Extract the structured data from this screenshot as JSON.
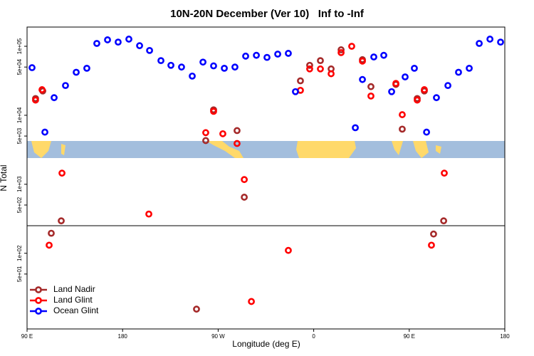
{
  "chart_data": {
    "type": "scatter",
    "title": "10N-20N December (Ver 10)   Inf to -Inf",
    "xlabel": "Longitude (deg E)",
    "ylabel": "N Total",
    "xlim": [
      90,
      540
    ],
    "xticks": [
      {
        "value": 90,
        "label": "90 E"
      },
      180,
      {
        "value": 270,
        "label": "90 W"
      },
      {
        "value": 360,
        "label": "0"
      },
      {
        "value": 450,
        "label": "90 E"
      },
      {
        "value": 540,
        "label": "180"
      }
    ],
    "ylim": [
      8,
      190000
    ],
    "ylog": true,
    "yticks": [
      {
        "value": 100000,
        "label": "1e+05"
      },
      {
        "value": 50000,
        "label": "5e+04"
      },
      {
        "value": 10000,
        "label": "1e+04"
      },
      {
        "value": 5000,
        "label": "5e+03"
      },
      {
        "value": 1000,
        "label": "1e+03"
      },
      {
        "value": 500,
        "label": "5e+02"
      },
      {
        "value": 100,
        "label": "1e+02"
      },
      {
        "value": 50,
        "label": "5e+01"
      }
    ],
    "legend": "bottom-left",
    "series": [
      {
        "name": "Land Nadir",
        "color": "#a52a2a",
        "x": [
          98.0,
          104.8,
          112.8,
          122.2,
          258.3,
          265.7,
          287.8,
          294.6,
          249.6,
          347.5,
          356.2,
          366.3,
          376.4,
          385.8,
          405.9,
          413.9,
          437.4,
          443.4,
          457.5,
          464.2,
          472.9,
          482.4
        ],
        "values": [
          17500,
          22500,
          195,
          295,
          4300,
          12000,
          6000,
          650,
          15.5,
          31600,
          53000,
          62000,
          47000,
          89000,
          64000,
          26000,
          28000,
          6300,
          17500,
          22500,
          190,
          295
        ]
      },
      {
        "name": "Land Glint",
        "color": "#ff0000",
        "x": [
          98.0,
          104.1,
          110.8,
          122.9,
          204.7,
          258.3,
          265.7,
          274.4,
          287.8,
          294.6,
          301.3,
          336.1,
          347.5,
          356.2,
          366.3,
          376.4,
          385.8,
          395.8,
          405.9,
          413.9,
          437.4,
          443.4,
          457.5,
          464.2,
          470.9,
          483.0
        ],
        "values": [
          16600,
          23500,
          131,
          1450,
          370,
          5600,
          11400,
          5400,
          3900,
          1170,
          20,
          110,
          23000,
          47000,
          47000,
          40000,
          81000,
          100000,
          61000,
          19000,
          29000,
          10200,
          16600,
          23500,
          131,
          1450
        ]
      },
      {
        "name": "Ocean Glint",
        "color": "#0000ff",
        "x": [
          94.7,
          106.8,
          115.5,
          126.2,
          136.3,
          146.3,
          155.7,
          165.8,
          175.8,
          185.9,
          196.0,
          205.4,
          216.1,
          225.5,
          235.5,
          245.6,
          255.7,
          265.7,
          275.8,
          285.8,
          295.9,
          306.0,
          316.0,
          326.1,
          336.1,
          342.8,
          399.2,
          405.9,
          416.6,
          426.0,
          433.4,
          446.1,
          454.8,
          466.3,
          475.6,
          486.4,
          496.4,
          506.5,
          515.9,
          526.0,
          536.0
        ],
        "values": [
          49000,
          5700,
          18000,
          27000,
          42000,
          48000,
          110000,
          124000,
          115000,
          127000,
          102000,
          87000,
          62000,
          53000,
          50000,
          37000,
          59000,
          52000,
          48000,
          50000,
          72000,
          74000,
          69000,
          77000,
          79000,
          22000,
          6600,
          33000,
          70000,
          74000,
          22000,
          36000,
          48000,
          5700,
          18000,
          27000,
          42000,
          48000,
          110000,
          127000,
          115000
        ]
      }
    ]
  }
}
